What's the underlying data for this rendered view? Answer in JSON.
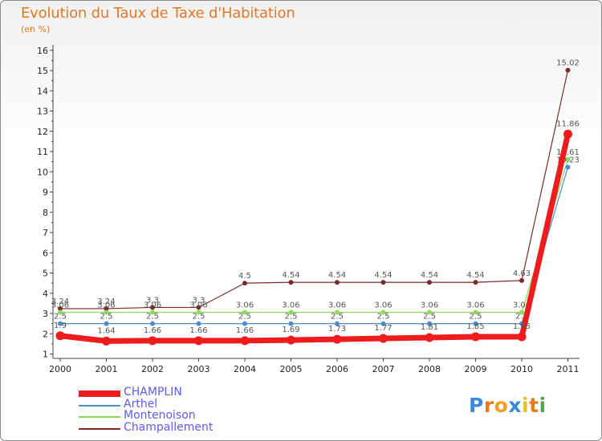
{
  "title": "Evolution du Taux de Taxe d'Habitation",
  "unit": "(en %)",
  "logo": {
    "letters": [
      "P",
      "r",
      "o",
      "x",
      "i",
      "t",
      "i"
    ],
    "colors": [
      "#3a8ad8",
      "#e87a20",
      "#f0a020",
      "#3a8ad8",
      "#e8c020",
      "#e87a20",
      "#50a850"
    ]
  },
  "chart_data": {
    "type": "line",
    "title": "Evolution du Taux de Taxe d'Habitation",
    "ylabel": "(en %)",
    "xlabel": "",
    "x": [
      "2000",
      "2001",
      "2002",
      "2003",
      "2004",
      "2005",
      "2006",
      "2007",
      "2008",
      "2009",
      "2010",
      "2011"
    ],
    "yticks": [
      "1",
      "2",
      "3",
      "4",
      "5",
      "6",
      "7",
      "8",
      "9",
      "10",
      "11",
      "12",
      "13",
      "14",
      "15",
      "16"
    ],
    "ylim": [
      0.5,
      16
    ],
    "series": [
      {
        "name": "Champallement",
        "color": "#7b2a2a",
        "values": [
          3.24,
          3.24,
          3.3,
          3.3,
          4.5,
          4.54,
          4.54,
          4.54,
          4.54,
          4.54,
          4.63,
          15.02
        ],
        "labels": [
          "3.24",
          "3.24",
          "3.3",
          "3.3",
          "4.5",
          "4.54",
          "4.54",
          "4.54",
          "4.54",
          "4.54",
          "4.63",
          "15.02"
        ]
      },
      {
        "name": "Montenoison",
        "color": "#88dd55",
        "values": [
          3.06,
          3.06,
          3.06,
          3.06,
          3.06,
          3.06,
          3.06,
          3.06,
          3.06,
          3.06,
          3.06,
          10.61
        ],
        "labels": [
          "3.06",
          "3.06",
          "3.06",
          "3.06",
          "3.06",
          "3.06",
          "3.06",
          "3.06",
          "3.06",
          "3.06",
          "3.06",
          "10.61"
        ]
      },
      {
        "name": "Arthel",
        "color": "#4a8ecf",
        "values": [
          2.5,
          2.5,
          2.5,
          2.5,
          2.5,
          2.5,
          2.5,
          2.5,
          2.5,
          2.5,
          2.5,
          10.23
        ],
        "labels": [
          "2.5",
          "2.5",
          "2.5",
          "2.5",
          "2.5",
          "2.5",
          "2.5",
          "2.5",
          "2.5",
          "2.5",
          "2.5",
          "10.23"
        ]
      },
      {
        "name": "CHAMPLIN",
        "color": "#ee1c1c",
        "values": [
          1.9,
          1.64,
          1.66,
          1.66,
          1.66,
          1.69,
          1.73,
          1.77,
          1.81,
          1.85,
          1.85,
          11.86
        ],
        "labels": [
          "1.9",
          "1.64",
          "1.66",
          "1.66",
          "1.66",
          "1.69",
          "1.73",
          "1.77",
          "1.81",
          "1.85",
          "1.85",
          "11.86"
        ]
      }
    ],
    "legend": [
      {
        "name": "CHAMPLIN",
        "color": "#ee1c1c",
        "thick": true
      },
      {
        "name": "Arthel",
        "color": "#4a8ecf",
        "thick": false
      },
      {
        "name": "Montenoison",
        "color": "#88dd55",
        "thick": false
      },
      {
        "name": "Champallement",
        "color": "#7b2a2a",
        "thick": false
      }
    ]
  }
}
